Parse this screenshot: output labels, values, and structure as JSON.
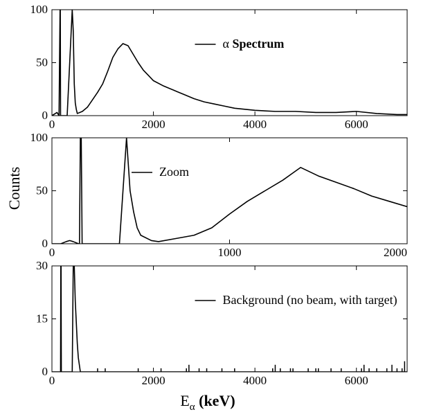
{
  "figure": {
    "ylabel": "Counts",
    "xlabel_main": "E",
    "xlabel_sub": "α",
    "xlabel_unit": " (keV)"
  },
  "chart_data": [
    {
      "type": "line",
      "xlim": [
        0,
        7000
      ],
      "ylim": [
        0,
        100
      ],
      "xticks": [
        0,
        2000,
        4000,
        6000
      ],
      "yticks": [
        0,
        50,
        100
      ],
      "legend": {
        "prefix": "α",
        "bold": "Spectrum",
        "placement": "top-center"
      },
      "series": [
        {
          "name": "α Spectrum",
          "x": [
            0,
            100,
            140,
            160,
            165,
            170,
            190,
            200,
            300,
            400,
            420,
            440,
            460,
            480,
            500,
            600,
            700,
            800,
            900,
            1000,
            1100,
            1200,
            1300,
            1400,
            1500,
            1600,
            1700,
            1800,
            1900,
            2000,
            2200,
            2400,
            2600,
            2800,
            3000,
            3200,
            3400,
            3600,
            3800,
            4000,
            4400,
            4800,
            5200,
            5600,
            6000,
            6400,
            6800,
            7000
          ],
          "y": [
            0,
            3,
            0,
            100,
            100,
            0,
            0,
            0,
            0,
            100,
            80,
            30,
            12,
            6,
            2,
            4,
            8,
            15,
            22,
            30,
            42,
            55,
            63,
            68,
            66,
            58,
            50,
            43,
            38,
            33,
            28,
            24,
            20,
            16,
            13,
            11,
            9,
            7,
            6,
            5,
            4,
            4,
            3,
            3,
            4,
            2,
            1,
            1
          ]
        }
      ]
    },
    {
      "type": "line",
      "xlim": [
        0,
        2000
      ],
      "ylim": [
        0,
        100
      ],
      "xticks": [
        0,
        1000,
        2000
      ],
      "yticks": [
        0,
        50,
        100
      ],
      "legend": {
        "text": "Zoom",
        "placement": "top-left"
      },
      "series": [
        {
          "name": "Zoom",
          "x": [
            0,
            50,
            80,
            100,
            120,
            150,
            155,
            160,
            165,
            170,
            200,
            300,
            380,
            420,
            440,
            460,
            480,
            500,
            560,
            600,
            700,
            800,
            900,
            1000,
            1100,
            1200,
            1300,
            1350,
            1400,
            1450,
            1500,
            1600,
            1700,
            1800,
            1900,
            2000
          ],
          "y": [
            0,
            0,
            2,
            3,
            2,
            0,
            0,
            100,
            100,
            0,
            0,
            0,
            0,
            100,
            50,
            30,
            15,
            8,
            3,
            2,
            5,
            8,
            15,
            28,
            40,
            50,
            60,
            66,
            72,
            68,
            64,
            58,
            52,
            45,
            40,
            35
          ]
        }
      ]
    },
    {
      "type": "line",
      "xlim": [
        0,
        7000
      ],
      "ylim": [
        0,
        30
      ],
      "xticks": [
        0,
        2000,
        4000,
        6000
      ],
      "yticks": [
        0,
        15,
        30
      ],
      "legend": {
        "text": "Background (no beam,  with target)",
        "placement": "top-center"
      },
      "series": [
        {
          "name": "Background (no beam,  with target)",
          "x": [
            0,
            170,
            175,
            180,
            185,
            190,
            400,
            420,
            440,
            460,
            480,
            500,
            520,
            540,
            560,
            7000
          ],
          "y": [
            0,
            0,
            30,
            30,
            0,
            0,
            0,
            30,
            30,
            20,
            14,
            8,
            4,
            2,
            0,
            0
          ],
          "spikes_x": [
            900,
            1050,
            1700,
            2150,
            2650,
            2700,
            2900,
            3050,
            3350,
            3600,
            4350,
            4400,
            4500,
            4700,
            4750,
            5050,
            5200,
            5250,
            5500,
            5700,
            6100,
            6150,
            6250,
            6400,
            6600,
            6700,
            6800,
            6900,
            6950
          ],
          "spikes_y": [
            1,
            1,
            1,
            1,
            1,
            2,
            1,
            1,
            1,
            1,
            1,
            2,
            1,
            1,
            1,
            1,
            1,
            1,
            1,
            1,
            1,
            2,
            1,
            1,
            1,
            2,
            1,
            1,
            3
          ]
        }
      ]
    }
  ]
}
